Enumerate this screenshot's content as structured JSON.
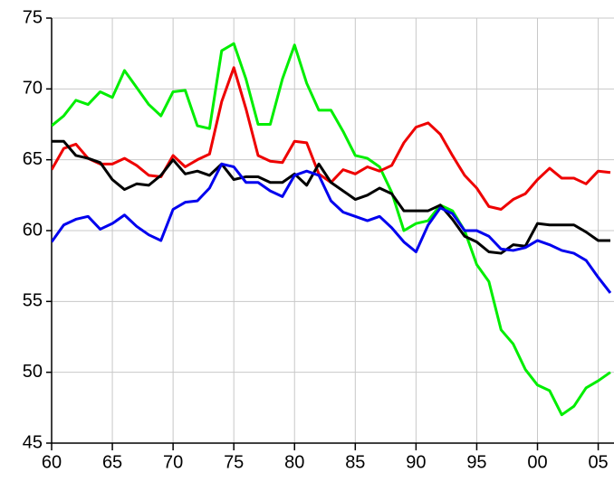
{
  "chart_data": {
    "type": "line",
    "x": [
      1960,
      1961,
      1962,
      1963,
      1964,
      1965,
      1966,
      1967,
      1968,
      1969,
      1970,
      1971,
      1972,
      1973,
      1974,
      1975,
      1976,
      1977,
      1978,
      1979,
      1980,
      1981,
      1982,
      1983,
      1984,
      1985,
      1986,
      1987,
      1988,
      1989,
      1990,
      1991,
      1992,
      1993,
      1994,
      1995,
      1996,
      1997,
      1998,
      1999,
      2000,
      2001,
      2002,
      2003,
      2004,
      2005,
      2006
    ],
    "series": [
      {
        "color": "#00ee00",
        "values": [
          67.4,
          68.1,
          69.2,
          68.9,
          69.8,
          69.4,
          71.3,
          70.1,
          68.9,
          68.1,
          69.8,
          69.9,
          67.4,
          67.2,
          72.7,
          73.2,
          70.7,
          67.5,
          67.5,
          70.7,
          73.1,
          70.4,
          68.5,
          68.5,
          67.0,
          65.3,
          65.1,
          64.5,
          62.7,
          60.0,
          60.5,
          60.7,
          61.8,
          61.4,
          60.0,
          57.6,
          56.4,
          53.0,
          52.0,
          50.2,
          49.1,
          48.7,
          47.0,
          47.6,
          48.9,
          49.4,
          50.0
        ]
      },
      {
        "color": "#ee0000",
        "values": [
          64.3,
          65.8,
          66.1,
          65.1,
          64.7,
          64.7,
          65.1,
          64.6,
          63.9,
          63.8,
          65.3,
          64.5,
          65.0,
          65.4,
          69.1,
          71.5,
          68.6,
          65.3,
          64.9,
          64.8,
          66.3,
          66.2,
          64.0,
          63.4,
          64.3,
          64.0,
          64.5,
          64.2,
          64.6,
          66.2,
          67.3,
          67.6,
          66.8,
          65.3,
          63.9,
          63.0,
          61.7,
          61.5,
          62.2,
          62.6,
          63.6,
          64.4,
          63.7,
          63.7,
          63.3,
          64.2,
          64.1
        ]
      },
      {
        "color": "#000000",
        "values": [
          66.3,
          66.3,
          65.3,
          65.1,
          64.8,
          63.6,
          62.9,
          63.3,
          63.2,
          63.9,
          65.0,
          64.0,
          64.2,
          63.9,
          64.7,
          63.6,
          63.8,
          63.8,
          63.4,
          63.4,
          64.0,
          63.2,
          64.7,
          63.4,
          62.8,
          62.2,
          62.5,
          63.0,
          62.6,
          61.4,
          61.4,
          61.4,
          61.8,
          60.8,
          59.6,
          59.2,
          58.5,
          58.4,
          59.0,
          58.9,
          60.5,
          60.4,
          60.4,
          60.4,
          59.9,
          59.3,
          59.3
        ]
      },
      {
        "color": "#0000ee",
        "values": [
          59.2,
          60.4,
          60.8,
          61.0,
          60.1,
          60.5,
          61.1,
          60.3,
          59.7,
          59.3,
          61.5,
          62.0,
          62.1,
          63.0,
          64.7,
          64.5,
          63.4,
          63.4,
          62.8,
          62.4,
          63.9,
          64.2,
          63.9,
          62.1,
          61.3,
          61.0,
          60.7,
          61.0,
          60.2,
          59.2,
          58.5,
          60.4,
          61.6,
          61.2,
          60.0,
          60.0,
          59.6,
          58.7,
          58.6,
          58.8,
          59.3,
          59.0,
          58.6,
          58.4,
          57.9,
          56.7,
          55.6
        ]
      }
    ],
    "xlim": [
      1960,
      2006.3
    ],
    "xticks": [
      {
        "value": 1960,
        "label": "60"
      },
      {
        "value": 1965,
        "label": "65"
      },
      {
        "value": 1970,
        "label": "70"
      },
      {
        "value": 1975,
        "label": "75"
      },
      {
        "value": 1980,
        "label": "80"
      },
      {
        "value": 1985,
        "label": "85"
      },
      {
        "value": 1990,
        "label": "90"
      },
      {
        "value": 1995,
        "label": "95"
      },
      {
        "value": 2000,
        "label": "00"
      },
      {
        "value": 2005,
        "label": "05"
      }
    ],
    "ylim": [
      45,
      75
    ],
    "yticks": [
      45,
      50,
      55,
      60,
      65,
      70,
      75
    ],
    "grid": true
  }
}
